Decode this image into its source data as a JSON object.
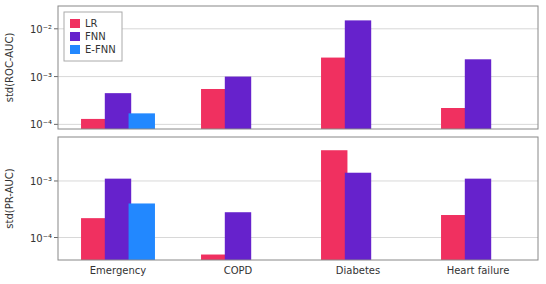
{
  "chart_data": [
    {
      "type": "bar",
      "y_label": "std(ROC-AUC)",
      "categories": [
        null,
        null,
        null,
        null
      ],
      "series": [
        {
          "name": "LR",
          "color": "#f03060",
          "values": [
            0.00013,
            0.00055,
            0.0025,
            0.00022
          ]
        },
        {
          "name": "FNN",
          "color": "#6622cc",
          "values": [
            0.00045,
            0.001,
            0.015,
            0.0023
          ]
        },
        {
          "name": "E-FNN",
          "color": "#2288ff",
          "values": [
            0.00017,
            null,
            null,
            null
          ]
        }
      ],
      "ylim": [
        8e-05,
        0.03
      ],
      "yticks": [
        {
          "value": 0.0001,
          "label": "10⁻⁴"
        },
        {
          "value": 0.001,
          "label": "10⁻³"
        },
        {
          "value": 0.01,
          "label": "10⁻²"
        }
      ],
      "log": "y",
      "grid": true,
      "legend": "upper left",
      "tick_labels": "y"
    },
    {
      "type": "bar",
      "y_label": "std(PR-AUC)",
      "categories": [
        "Emergency",
        "COPD",
        "Diabetes",
        "Heart failure"
      ],
      "series": [
        {
          "name": "LR",
          "color": "#f03060",
          "values": [
            0.00022,
            5e-05,
            0.0035,
            0.00025
          ]
        },
        {
          "name": "FNN",
          "color": "#6622cc",
          "values": [
            0.0011,
            0.00028,
            0.0014,
            0.0011
          ]
        },
        {
          "name": "E-FNN",
          "color": "#2288ff",
          "values": [
            0.0004,
            null,
            null,
            null
          ]
        }
      ],
      "ylim": [
        4e-05,
        0.006
      ],
      "yticks": [
        {
          "value": 0.0001,
          "label": "10⁻⁴"
        },
        {
          "value": 0.001,
          "label": "10⁻³"
        }
      ],
      "log": "y",
      "grid": true,
      "legend": false
    }
  ]
}
